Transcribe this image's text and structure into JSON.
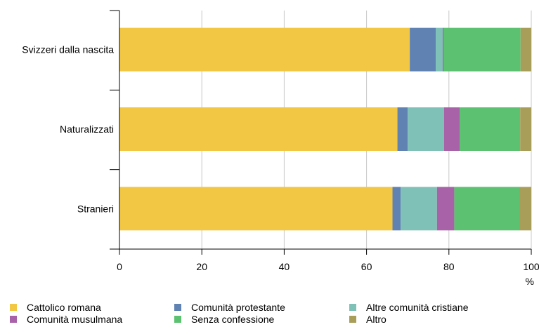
{
  "chart_data": {
    "type": "bar",
    "orientation": "horizontal",
    "stacked": true,
    "categories": [
      "Svizzeri dalla nascita",
      "Naturalizzati",
      "Stranieri"
    ],
    "series": [
      {
        "name": "Cattolico romana",
        "color": "#f2c744",
        "values": [
          70.5,
          67.5,
          66.3
        ]
      },
      {
        "name": "Comunità protestante",
        "color": "#5f82b2",
        "values": [
          6.3,
          2.5,
          2.0
        ]
      },
      {
        "name": "Altre comunità cristiane",
        "color": "#7fc1b7",
        "values": [
          1.7,
          8.8,
          8.8
        ]
      },
      {
        "name": "Comunità musulmana",
        "color": "#a862a8",
        "values": [
          0.3,
          3.8,
          4.2
        ]
      },
      {
        "name": "Senza confessione",
        "color": "#5cc170",
        "values": [
          18.6,
          14.7,
          15.8
        ]
      },
      {
        "name": "Altro",
        "color": "#a89e5a",
        "values": [
          2.6,
          2.7,
          2.9
        ]
      }
    ],
    "xlim": [
      0,
      100
    ],
    "xticks": [
      "0",
      "20",
      "40",
      "60",
      "80",
      "100"
    ],
    "xunit": "%",
    "grid": true,
    "legend_position": "bottom"
  }
}
